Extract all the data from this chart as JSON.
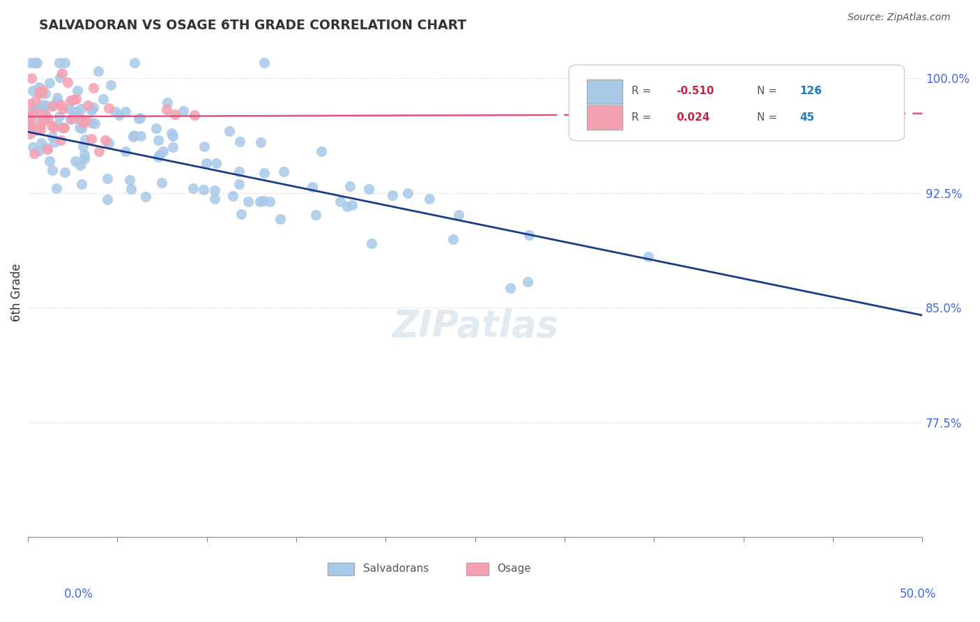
{
  "title": "SALVADORAN VS OSAGE 6TH GRADE CORRELATION CHART",
  "source": "Source: ZipAtlas.com",
  "ylabel": "6th Grade",
  "ytick_labels": [
    "100.0%",
    "92.5%",
    "85.0%",
    "77.5%"
  ],
  "ytick_values": [
    1.0,
    0.925,
    0.85,
    0.775
  ],
  "xlim": [
    0.0,
    0.5
  ],
  "ylim": [
    0.7,
    1.02
  ],
  "legend_blue_r": "-0.510",
  "legend_blue_n": "126",
  "legend_pink_r": "0.024",
  "legend_pink_n": "45",
  "blue_color": "#a8c8e8",
  "pink_color": "#f4a0b0",
  "blue_line_color": "#1a3a8a",
  "pink_line_color": "#e05080",
  "grid_color": "#cccccc",
  "background_color": "#ffffff",
  "watermark": "ZIPatlas"
}
